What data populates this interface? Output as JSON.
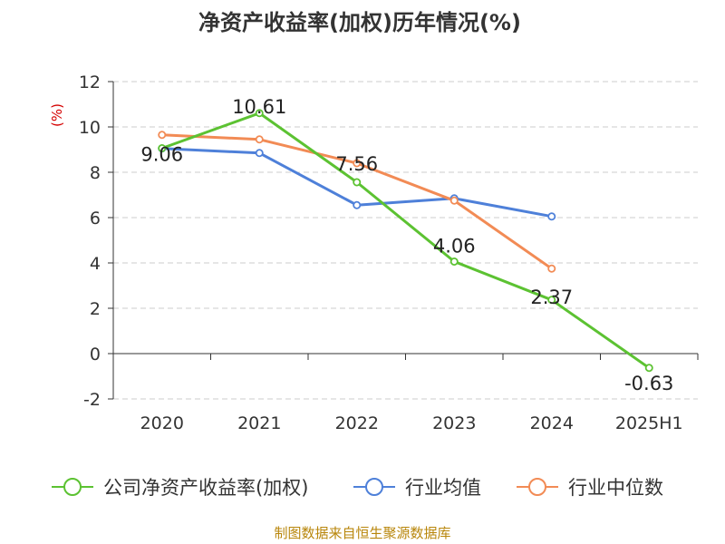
{
  "chart_data": {
    "type": "line",
    "title": "净资产收益率(加权)历年情况(%)",
    "ylabel": "(%)",
    "categories": [
      "2020",
      "2021",
      "2022",
      "2023",
      "2024",
      "2025H1"
    ],
    "ylim": [
      -2,
      12
    ],
    "yticks": [
      -2,
      0,
      2,
      4,
      6,
      8,
      10,
      12
    ],
    "grid": true,
    "legend_position": "bottom",
    "series": [
      {
        "name": "公司净资产收益率(加权)",
        "color": "#5cc232",
        "values": [
          9.06,
          10.61,
          7.56,
          4.06,
          2.37,
          -0.63
        ],
        "labels": [
          "9.06",
          "10.61",
          "7.56",
          "4.06",
          "2.37",
          "-0.63"
        ]
      },
      {
        "name": "行业均值",
        "color": "#4e80d9",
        "values": [
          9.05,
          8.85,
          6.55,
          6.85,
          6.05,
          null
        ]
      },
      {
        "name": "行业中位数",
        "color": "#f28b55",
        "values": [
          9.65,
          9.45,
          8.4,
          6.75,
          3.75,
          null
        ]
      }
    ]
  },
  "source": "制图数据来自恒生聚源数据库"
}
